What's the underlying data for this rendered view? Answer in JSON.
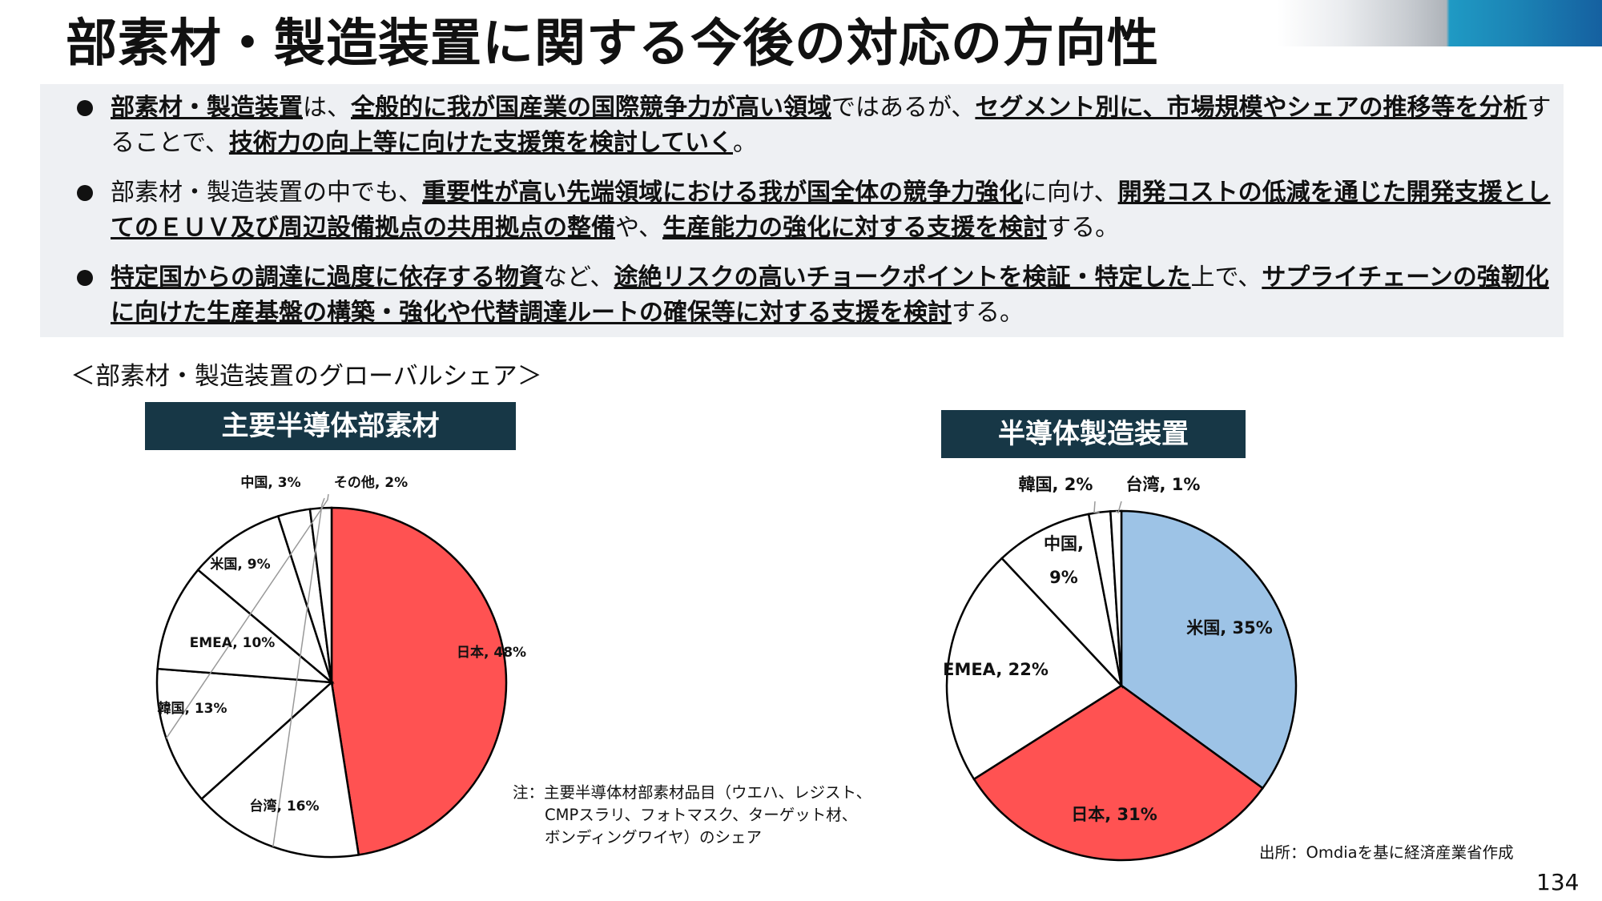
{
  "title": "部素材・製造装置に関する今後の対応の方向性",
  "bullets": [
    [
      {
        "t": "部素材・製造装置",
        "u": true
      },
      {
        "t": "は、",
        "u": false
      },
      {
        "t": "全般的に我が国産業の国際競争力が高い領域",
        "u": true
      },
      {
        "t": "ではあるが、",
        "u": false
      },
      {
        "t": "セグメント別に、市場規模やシェアの推移等を分析",
        "u": true
      },
      {
        "t": "することで、",
        "u": false
      },
      {
        "t": "技術力の向上等に向けた支援策を検討していく",
        "u": true
      },
      {
        "t": "。",
        "u": false
      }
    ],
    [
      {
        "t": "部素材・製造装置の中でも、",
        "u": false
      },
      {
        "t": "重要性が高い先端領域における我が国全体の競争力強化",
        "u": true
      },
      {
        "t": "に向け、",
        "u": false
      },
      {
        "t": "開発コストの低減を通じた開発支援としてのＥＵＶ及び周辺設備拠点の共用拠点の整備",
        "u": true
      },
      {
        "t": "や、",
        "u": false
      },
      {
        "t": "生産能力の強化に対する支援を検討",
        "u": true
      },
      {
        "t": "する。",
        "u": false
      }
    ],
    [
      {
        "t": "特定国からの調達に過度に依存する物資",
        "u": true
      },
      {
        "t": "など、",
        "u": false
      },
      {
        "t": "途絶リスクの高いチョークポイントを検証・特定した",
        "u": true
      },
      {
        "t": "上で、",
        "u": false
      },
      {
        "t": "サプライチェーンの強靭化に向けた生産基盤の構築・強化や代替調達ルートの確保等に対する支援を検討",
        "u": true
      },
      {
        "t": "する。",
        "u": false
      }
    ]
  ],
  "subtitle": "＜部素材・製造装置のグローバルシェア＞",
  "chart_data": [
    {
      "type": "pie",
      "title": "主要半導体部素材",
      "categories": [
        "日本",
        "台湾",
        "韓国",
        "EMEA",
        "米国",
        "中国",
        "その他"
      ],
      "values": [
        48,
        16,
        13,
        10,
        9,
        3,
        2
      ],
      "labels": [
        "日本, 48%",
        "台湾, 16%",
        "韓国, 13%",
        "EMEA, 10%",
        "米国, 9%",
        "中国, 3%",
        "その他, 2%"
      ],
      "colors": [
        "#ff5252",
        "#ffffff",
        "#ffffff",
        "#ffffff",
        "#ffffff",
        "#ffffff",
        "#ffffff"
      ]
    },
    {
      "type": "pie",
      "title": "半導体製造装置",
      "categories": [
        "米国",
        "日本",
        "EMEA",
        "中国",
        "韓国",
        "台湾"
      ],
      "values": [
        35,
        31,
        22,
        9,
        2,
        1
      ],
      "labels": [
        "米国, 35%",
        "日本, 31%",
        "EMEA, 22%",
        "中国,|9%",
        "韓国, 2%",
        "台湾, 1%"
      ],
      "colors": [
        "#9dc3e6",
        "#ff5252",
        "#ffffff",
        "#ffffff",
        "#ffffff",
        "#ffffff"
      ]
    }
  ],
  "note": {
    "line1": "注：主要半導体材部素材品目（ウエハ、レジスト、",
    "line2": "CMPスラリ、フォトマスク、ターゲット材、",
    "line3": "ボンディングワイヤ）のシェア"
  },
  "source": "出所：Omdiaを基に経済産業省作成",
  "page_number": "134"
}
